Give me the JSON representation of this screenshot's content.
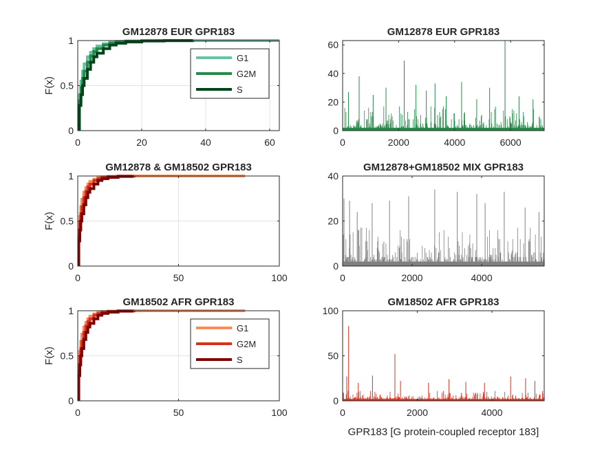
{
  "chart_data": [
    {
      "id": "p1",
      "type": "line",
      "subtype": "empirical-cdf",
      "title": "GM12878 EUR GPR183",
      "xlabel": "",
      "ylabel": "F(x)",
      "xlim": [
        0,
        63
      ],
      "ylim": [
        0,
        1
      ],
      "xticks": [
        0,
        20,
        40,
        60
      ],
      "yticks": [
        0,
        0.5,
        1
      ],
      "xtick_labels": [
        "0",
        "20",
        "40",
        "60"
      ],
      "ytick_labels": [
        "0",
        "0.5",
        "1"
      ],
      "grid": true,
      "legend": "top-right",
      "series": [
        {
          "name": "G1",
          "color": "#66c2a4",
          "x": [
            0,
            0.5,
            1,
            1.5,
            2,
            3,
            4,
            5,
            6,
            8,
            10,
            12,
            15,
            20,
            25,
            63
          ],
          "y": [
            0,
            0.4,
            0.55,
            0.66,
            0.74,
            0.82,
            0.87,
            0.91,
            0.94,
            0.965,
            0.98,
            0.99,
            0.995,
            0.998,
            1,
            1
          ]
        },
        {
          "name": "G2M",
          "color": "#238b45",
          "x": [
            0,
            0.5,
            1,
            1.5,
            2,
            3,
            4,
            5,
            6,
            8,
            10,
            12,
            15,
            20,
            36
          ],
          "y": [
            0,
            0.33,
            0.48,
            0.58,
            0.66,
            0.76,
            0.83,
            0.88,
            0.91,
            0.95,
            0.97,
            0.985,
            0.993,
            0.998,
            1
          ]
        },
        {
          "name": "S",
          "color": "#00441b",
          "x": [
            0,
            0.5,
            1,
            1.5,
            2,
            3,
            4,
            5,
            6,
            8,
            10,
            12,
            15,
            20,
            27,
            36
          ],
          "y": [
            0,
            0.28,
            0.4,
            0.5,
            0.58,
            0.68,
            0.76,
            0.82,
            0.86,
            0.91,
            0.95,
            0.97,
            0.985,
            0.995,
            1,
            1
          ]
        }
      ]
    },
    {
      "id": "p2",
      "type": "bar",
      "title": "GM12878 EUR GPR183",
      "xlabel": "",
      "ylabel": "",
      "xlim": [
        0,
        7200
      ],
      "ylim": [
        0,
        63
      ],
      "xticks": [
        0,
        2000,
        4000,
        6000
      ],
      "yticks": [
        0,
        20,
        40,
        60
      ],
      "xtick_labels": [
        "0",
        "2000",
        "4000",
        "6000"
      ],
      "ytick_labels": [
        "0",
        "20",
        "40",
        "60"
      ],
      "color": "#238b45",
      "n_cells": 7200,
      "spikes": [
        [
          210,
          27
        ],
        [
          590,
          38
        ],
        [
          1090,
          25
        ],
        [
          1550,
          30
        ],
        [
          2200,
          49
        ],
        [
          2620,
          32
        ],
        [
          2990,
          28
        ],
        [
          3300,
          33
        ],
        [
          3700,
          24
        ],
        [
          4250,
          34
        ],
        [
          4790,
          22
        ],
        [
          5250,
          30
        ],
        [
          5800,
          63
        ],
        [
          6300,
          24
        ],
        [
          6800,
          22
        ]
      ],
      "typical_max": 18
    },
    {
      "id": "p3",
      "type": "line",
      "subtype": "empirical-cdf",
      "title": "GM12878 & GM18502 GPR183",
      "xlabel": "",
      "ylabel": "F(x)",
      "xlim": [
        0,
        100
      ],
      "ylim": [
        0,
        1
      ],
      "xticks": [
        0,
        50,
        100
      ],
      "yticks": [
        0,
        0.5,
        1
      ],
      "xtick_labels": [
        "0",
        "50",
        "100"
      ],
      "ytick_labels": [
        "0",
        "0.5",
        "1"
      ],
      "grid": true,
      "legend": "none",
      "series": [
        {
          "name": "G1",
          "color": "#fc8d59",
          "x": [
            0,
            0.5,
            1,
            1.5,
            2,
            3,
            4,
            5,
            6,
            8,
            10,
            12,
            15,
            20,
            27,
            83
          ],
          "y": [
            0,
            0.4,
            0.55,
            0.66,
            0.74,
            0.82,
            0.87,
            0.91,
            0.94,
            0.965,
            0.98,
            0.99,
            0.995,
            0.998,
            1,
            1
          ]
        },
        {
          "name": "G2M",
          "color": "#d7301f",
          "x": [
            0,
            0.5,
            1,
            1.5,
            2,
            3,
            4,
            5,
            6,
            8,
            10,
            12,
            15,
            20,
            28
          ],
          "y": [
            0,
            0.33,
            0.48,
            0.58,
            0.66,
            0.76,
            0.83,
            0.88,
            0.91,
            0.95,
            0.97,
            0.985,
            0.993,
            0.998,
            1
          ]
        },
        {
          "name": "S",
          "color": "#7f0000",
          "x": [
            0,
            0.5,
            1,
            1.5,
            2,
            3,
            4,
            5,
            6,
            8,
            10,
            12,
            15,
            20,
            27
          ],
          "y": [
            0,
            0.28,
            0.4,
            0.5,
            0.58,
            0.68,
            0.76,
            0.82,
            0.86,
            0.91,
            0.95,
            0.97,
            0.985,
            0.995,
            1
          ]
        }
      ]
    },
    {
      "id": "p4",
      "type": "bar",
      "title": "GM12878+GM18502 MIX GPR183",
      "xlabel": "",
      "ylabel": "",
      "xlim": [
        0,
        5800
      ],
      "ylim": [
        0,
        40
      ],
      "xticks": [
        0,
        2000,
        4000
      ],
      "yticks": [
        0,
        20,
        40
      ],
      "xtick_labels": [
        "0",
        "2000",
        "4000"
      ],
      "ytick_labels": [
        "0",
        "20",
        "40"
      ],
      "color": "#808080",
      "n_cells": 5800,
      "spikes": [
        [
          40,
          30
        ],
        [
          200,
          29
        ],
        [
          420,
          24
        ],
        [
          850,
          28
        ],
        [
          1350,
          29
        ],
        [
          1900,
          31
        ],
        [
          2650,
          34
        ],
        [
          3300,
          33
        ],
        [
          3860,
          32
        ],
        [
          4100,
          28
        ],
        [
          4650,
          33
        ],
        [
          5250,
          26
        ],
        [
          5650,
          24
        ]
      ],
      "typical_max": 18
    },
    {
      "id": "p5",
      "type": "line",
      "subtype": "empirical-cdf",
      "title": "GM18502 AFR GPR183",
      "xlabel": "",
      "ylabel": "F(x)",
      "xlim": [
        0,
        100
      ],
      "ylim": [
        0,
        1
      ],
      "xticks": [
        0,
        50,
        100
      ],
      "yticks": [
        0,
        0.5,
        1
      ],
      "xtick_labels": [
        "0",
        "50",
        "100"
      ],
      "ytick_labels": [
        "0",
        "0.5",
        "1"
      ],
      "grid": true,
      "legend": "top-right",
      "series": [
        {
          "name": "G1",
          "color": "#fc8d59",
          "x": [
            0,
            0.5,
            1,
            1.5,
            2,
            3,
            4,
            5,
            6,
            8,
            10,
            12,
            15,
            20,
            27,
            83
          ],
          "y": [
            0,
            0.4,
            0.55,
            0.66,
            0.74,
            0.82,
            0.87,
            0.91,
            0.94,
            0.965,
            0.98,
            0.99,
            0.995,
            0.998,
            1,
            1
          ]
        },
        {
          "name": "G2M",
          "color": "#d7301f",
          "x": [
            0,
            0.5,
            1,
            1.5,
            2,
            3,
            4,
            5,
            6,
            8,
            10,
            12,
            15,
            20,
            28
          ],
          "y": [
            0,
            0.33,
            0.48,
            0.58,
            0.66,
            0.76,
            0.83,
            0.88,
            0.91,
            0.95,
            0.97,
            0.985,
            0.993,
            0.998,
            1
          ]
        },
        {
          "name": "S",
          "color": "#7f0000",
          "x": [
            0,
            0.5,
            1,
            1.5,
            2,
            3,
            4,
            5,
            6,
            8,
            10,
            12,
            15,
            20,
            27
          ],
          "y": [
            0,
            0.28,
            0.4,
            0.5,
            0.58,
            0.68,
            0.76,
            0.82,
            0.86,
            0.91,
            0.95,
            0.97,
            0.985,
            0.995,
            1
          ]
        }
      ]
    },
    {
      "id": "p6",
      "type": "bar",
      "title": "GM18502 AFR GPR183",
      "xlabel": "GPR183 [G protein-coupled receptor 183]",
      "ylabel": "",
      "xlim": [
        0,
        5400
      ],
      "ylim": [
        0,
        100
      ],
      "xticks": [
        0,
        2000,
        4000
      ],
      "yticks": [
        0,
        50,
        100
      ],
      "xtick_labels": [
        "0",
        "2000",
        "4000"
      ],
      "ytick_labels": [
        "0",
        "50",
        "100"
      ],
      "color": "#d7301f",
      "n_cells": 5400,
      "spikes": [
        [
          110,
          27
        ],
        [
          160,
          83
        ],
        [
          420,
          20
        ],
        [
          800,
          28
        ],
        [
          1400,
          52
        ],
        [
          1550,
          22
        ],
        [
          2300,
          20
        ],
        [
          2850,
          24
        ],
        [
          3300,
          21
        ],
        [
          3800,
          20
        ],
        [
          4500,
          27
        ],
        [
          4900,
          25
        ],
        [
          5150,
          22
        ]
      ],
      "typical_max": 12
    }
  ]
}
